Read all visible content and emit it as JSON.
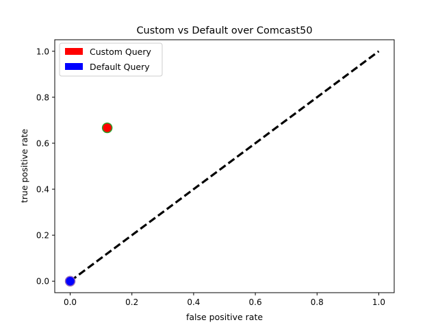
{
  "chart_data": {
    "type": "scatter",
    "title": "Custom vs Default over Comcast50",
    "xlabel": "false positive rate",
    "ylabel": "true positive rate",
    "xlim": [
      -0.05,
      1.05
    ],
    "ylim": [
      -0.05,
      1.05
    ],
    "xticks": [
      0.0,
      0.2,
      0.4,
      0.6,
      0.8,
      1.0
    ],
    "xtick_labels": [
      "0.0",
      "0.2",
      "0.4",
      "0.6",
      "0.8",
      "1.0"
    ],
    "yticks": [
      0.0,
      0.2,
      0.4,
      0.6,
      0.8,
      1.0
    ],
    "ytick_labels": [
      "0.0",
      "0.2",
      "0.4",
      "0.6",
      "0.8",
      "1.0"
    ],
    "grid": false,
    "legend_position": "top-left",
    "series": [
      {
        "name": "Custom Query",
        "points": [
          {
            "x": 0.12,
            "y": 0.667
          }
        ],
        "color": "#ff0000",
        "edge_color": "#2ca02c"
      },
      {
        "name": "Default Query",
        "points": [
          {
            "x": 0.0,
            "y": 0.0
          }
        ],
        "color": "#0000ff",
        "edge_color": "#9467bd"
      }
    ],
    "reference_line": {
      "from": {
        "x": 0.0,
        "y": 0.0
      },
      "to": {
        "x": 1.0,
        "y": 1.0
      },
      "style": "dashed",
      "color": "#000000"
    }
  }
}
